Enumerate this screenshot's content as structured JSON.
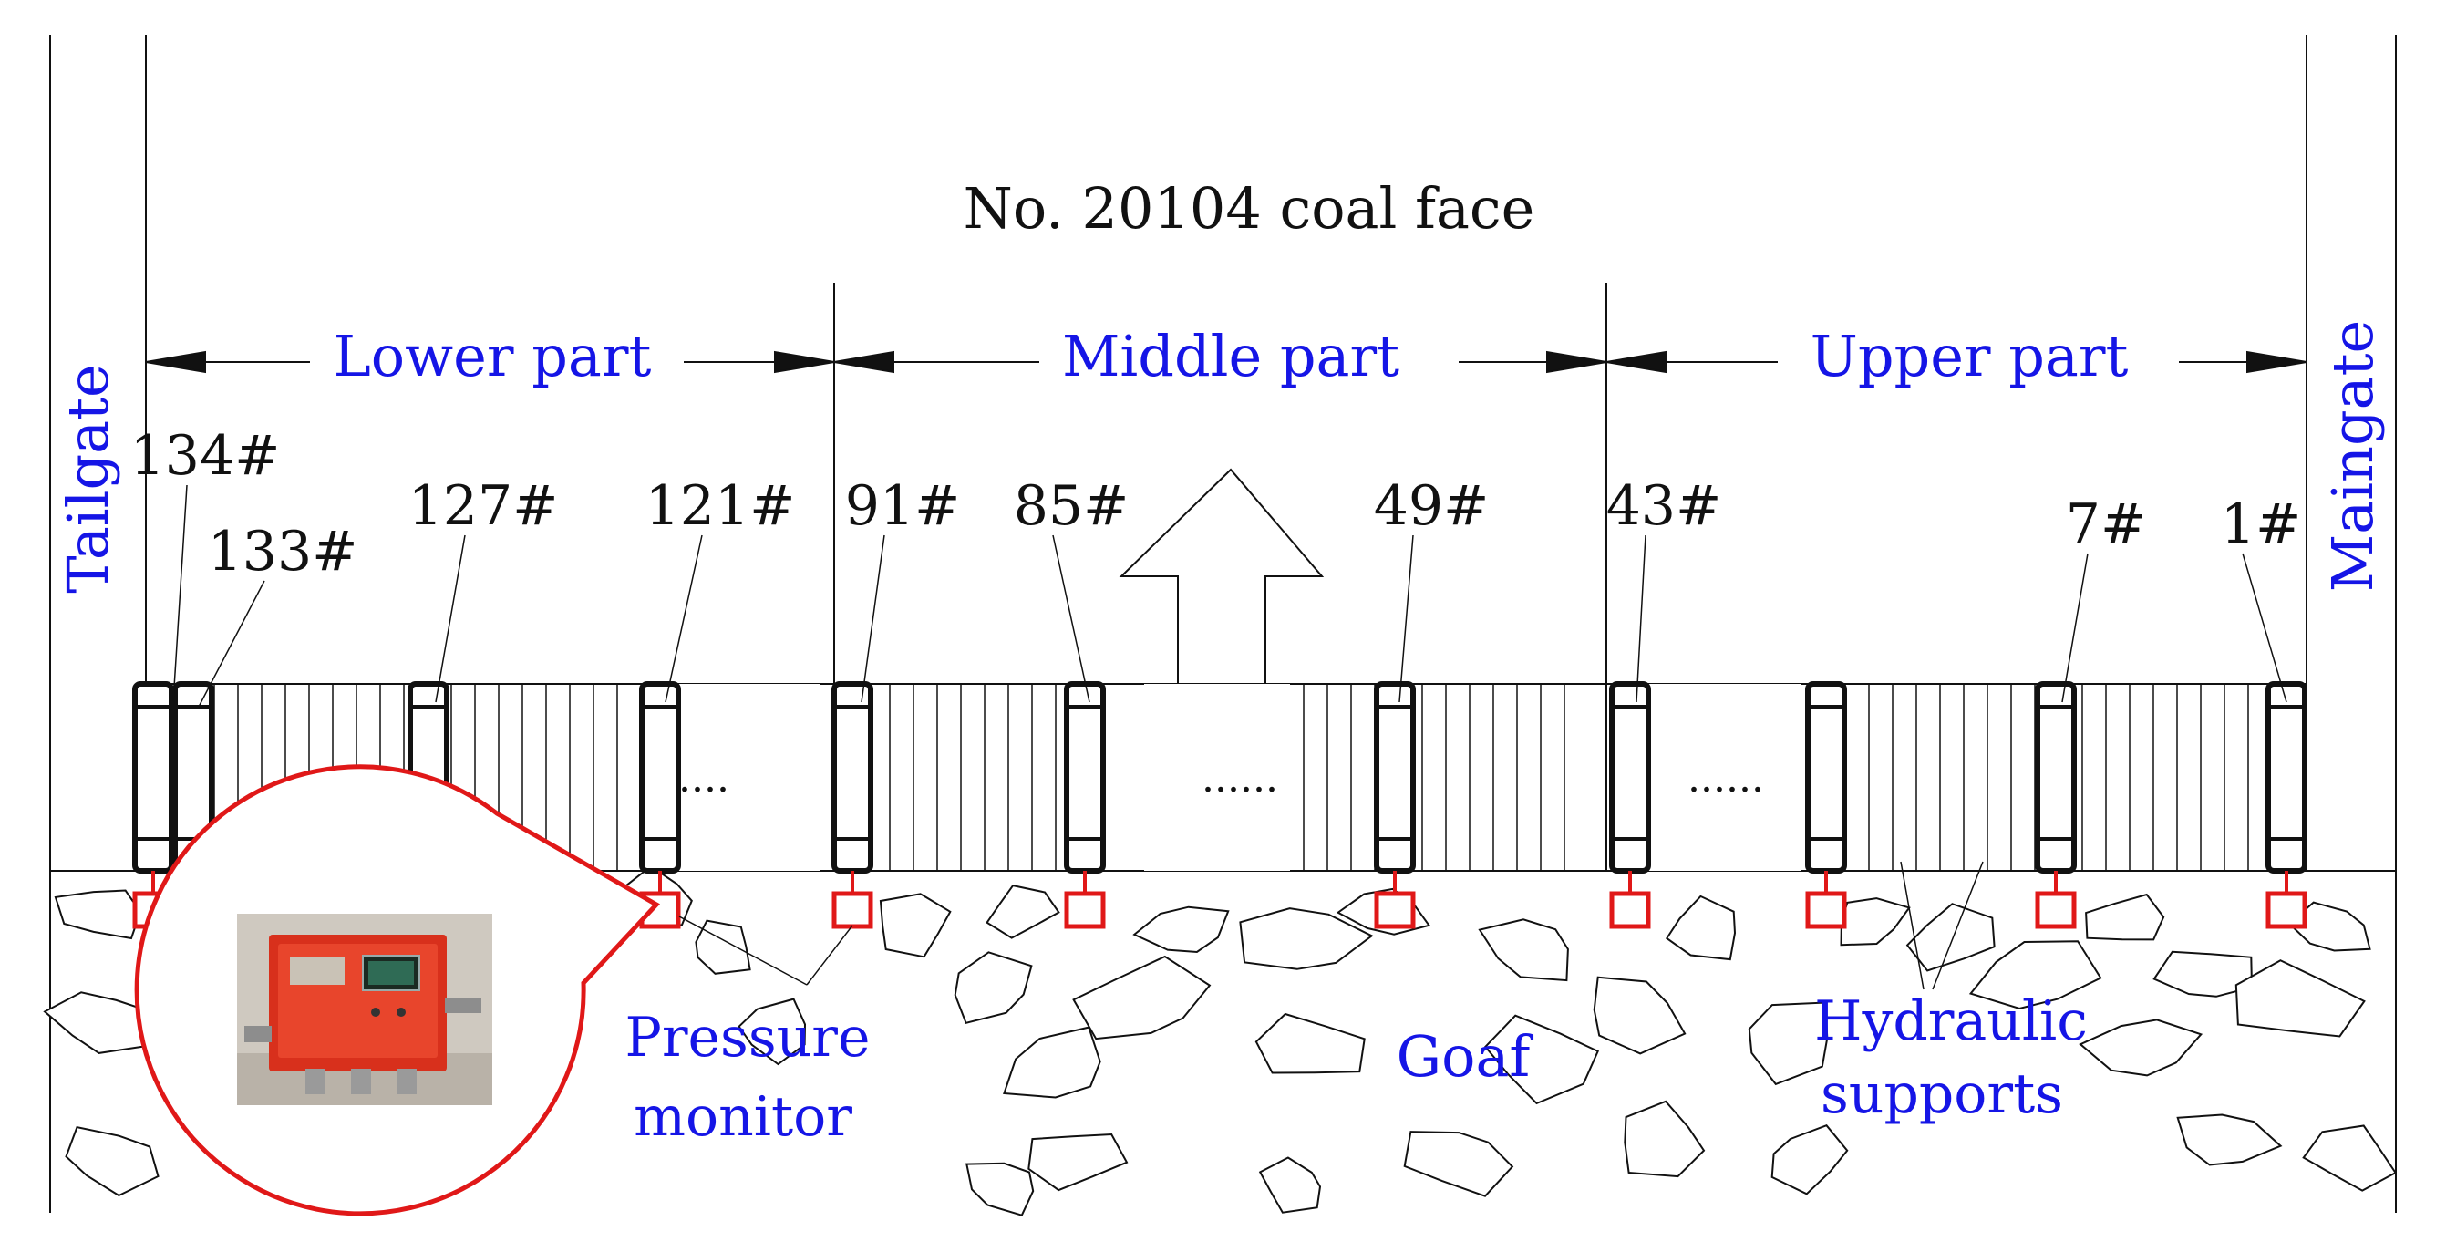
{
  "title": "No. 20104 coal face",
  "gates": {
    "left": "Tailgate",
    "right": "Maingate"
  },
  "parts": [
    {
      "label": "Lower part"
    },
    {
      "label": "Middle part"
    },
    {
      "label": "Upper part"
    }
  ],
  "supports": [
    "134#",
    "133#",
    "127#",
    "121#",
    "91#",
    "85#",
    "49#",
    "43#",
    "7#",
    "1#"
  ],
  "ellipsis": "......",
  "labels": {
    "pressure_monitor": [
      "Pressure",
      "monitor"
    ],
    "goaf": "Goaf",
    "hydraulic_supports": [
      "Hydraulic",
      "supports"
    ]
  },
  "colors": {
    "label_blue": "#1515e6",
    "monitor_red": "#e01818",
    "device_red": "#d8301c",
    "line": "#111111"
  },
  "icons": {
    "advance_arrow": "advance-direction-arrow-icon",
    "monitor": "pressure-monitor-icon",
    "device_photo": "pressure-monitor-device-photo"
  }
}
